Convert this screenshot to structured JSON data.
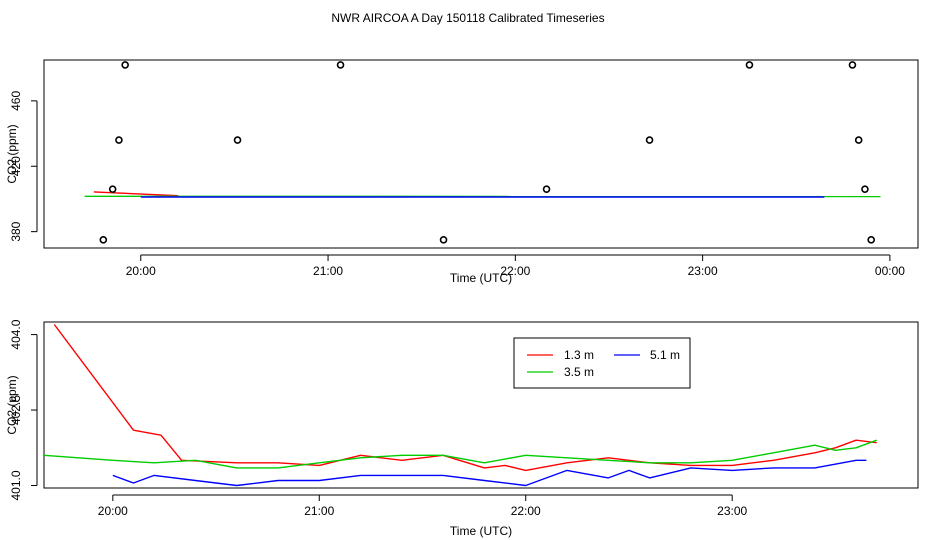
{
  "chart_data": [
    {
      "type": "scatter",
      "title": "NWR AIRCOA A  Day 150118  Calibrated Timeseries",
      "xlabel": "Time (UTC)",
      "ylabel": "CO2 (ppm)",
      "xlim": [
        "19:29",
        "00:09"
      ],
      "ylim": [
        370,
        485
      ],
      "xticks": [
        "20:00",
        "21:00",
        "22:00",
        "23:00",
        "00:00"
      ],
      "yticks": [
        380,
        420,
        460
      ],
      "grid": false,
      "points": [
        {
          "x": "19:48",
          "y": 375
        },
        {
          "x": "19:51",
          "y": 406
        },
        {
          "x": "19:53",
          "y": 436
        },
        {
          "x": "19:55",
          "y": 482
        },
        {
          "x": "20:31",
          "y": 436
        },
        {
          "x": "21:04",
          "y": 482
        },
        {
          "x": "21:37",
          "y": 375
        },
        {
          "x": "22:10",
          "y": 406
        },
        {
          "x": "22:43",
          "y": 436
        },
        {
          "x": "23:15",
          "y": 482
        },
        {
          "x": "23:48",
          "y": 482
        },
        {
          "x": "23:50",
          "y": 436
        },
        {
          "x": "23:52",
          "y": 406
        },
        {
          "x": "23:54",
          "y": 375
        }
      ],
      "series": [
        {
          "name": "1.3 m",
          "color": "#ff0000",
          "x": [
            "19:45",
            "20:12"
          ],
          "values": [
            404.3,
            402.0
          ]
        },
        {
          "name": "3.5 m",
          "color": "#00cc00",
          "x": [
            "19:42",
            "23:57"
          ],
          "values": [
            401.6,
            401.5
          ]
        },
        {
          "name": "5.1 m",
          "color": "#0000ff",
          "x": [
            "20:00",
            "23:39"
          ],
          "values": [
            401.2,
            401.2
          ]
        }
      ]
    },
    {
      "type": "line",
      "title": "",
      "xlabel": "Time (UTC)",
      "ylabel": "CO2 (ppm)",
      "xlim": [
        "19:40",
        "23:54"
      ],
      "ylim": [
        400.95,
        404.25
      ],
      "xticks": [
        "20:00",
        "21:00",
        "22:00",
        "23:00"
      ],
      "yticks": [
        "401.0",
        "402.5",
        "404.0"
      ],
      "grid": false,
      "legend_position": "top-center",
      "series": [
        {
          "name": "1.3 m",
          "color": "#ff0000",
          "x": [
            "19:43",
            "20:06",
            "20:14",
            "20:20",
            "20:36",
            "20:48",
            "21:00",
            "21:12",
            "21:24",
            "21:36",
            "21:48",
            "21:54",
            "22:00",
            "22:12",
            "22:24",
            "22:36",
            "22:48",
            "23:00",
            "23:12",
            "23:24",
            "23:30",
            "23:36",
            "23:42"
          ],
          "values": [
            404.2,
            402.1,
            402.0,
            401.5,
            401.45,
            401.45,
            401.4,
            401.6,
            401.5,
            401.6,
            401.35,
            401.4,
            401.3,
            401.45,
            401.55,
            401.45,
            401.4,
            401.4,
            401.5,
            401.65,
            401.75,
            401.9,
            401.85
          ]
        },
        {
          "name": "3.5 m",
          "color": "#00cc00",
          "x": [
            "19:40",
            "20:00",
            "20:12",
            "20:24",
            "20:36",
            "20:48",
            "21:00",
            "21:12",
            "21:24",
            "21:36",
            "21:48",
            "22:00",
            "22:12",
            "22:24",
            "22:36",
            "22:48",
            "23:00",
            "23:12",
            "23:24",
            "23:30",
            "23:36",
            "23:42"
          ],
          "values": [
            401.6,
            401.5,
            401.45,
            401.5,
            401.35,
            401.35,
            401.45,
            401.55,
            401.6,
            401.6,
            401.45,
            401.6,
            401.55,
            401.5,
            401.45,
            401.45,
            401.5,
            401.65,
            401.8,
            401.7,
            401.75,
            401.9
          ]
        },
        {
          "name": "5.1 m",
          "color": "#0000ff",
          "x": [
            "20:00",
            "20:06",
            "20:12",
            "20:24",
            "20:36",
            "20:48",
            "21:00",
            "21:12",
            "21:24",
            "21:36",
            "21:48",
            "22:00",
            "22:12",
            "22:24",
            "22:30",
            "22:36",
            "22:48",
            "23:00",
            "23:12",
            "23:24",
            "23:36",
            "23:39"
          ],
          "values": [
            401.2,
            401.05,
            401.2,
            401.1,
            401.0,
            401.1,
            401.1,
            401.2,
            401.2,
            401.2,
            401.1,
            401.0,
            401.3,
            401.15,
            401.3,
            401.15,
            401.35,
            401.3,
            401.35,
            401.35,
            401.5,
            401.5
          ]
        }
      ]
    }
  ]
}
